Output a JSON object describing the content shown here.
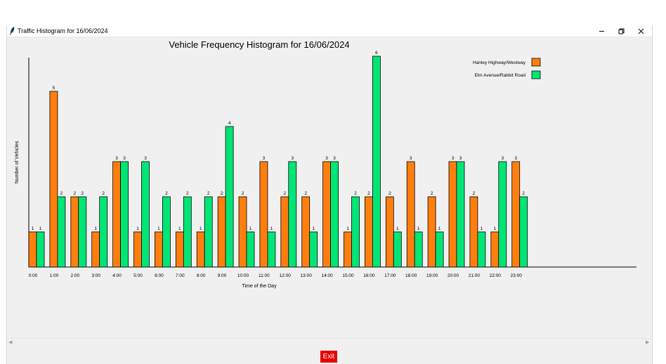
{
  "window": {
    "title": "Traffic Histogram for 16/06/2024",
    "controls": [
      "minimize-icon",
      "restore-icon",
      "close-icon"
    ]
  },
  "exit_button": {
    "label": "Exit",
    "color": "#e60000"
  },
  "chart_data": {
    "type": "bar",
    "title": "Vehicle Frequency Histogram for 16/06/2024",
    "xlabel": "Time of the Day",
    "ylabel": "Number of Vehicles",
    "ylim": [
      0,
      6
    ],
    "grid": false,
    "legend_position": "top-right",
    "categories": [
      "0:00",
      "1:00",
      "2:00",
      "3:00",
      "4:00",
      "5:00",
      "6:00",
      "7:00",
      "8:00",
      "9:00",
      "10:00",
      "11:00",
      "12:00",
      "13:00",
      "14:00",
      "15:00",
      "16:00",
      "17:00",
      "18:00",
      "19:00",
      "20:00",
      "21:00",
      "22:00",
      "23:00"
    ],
    "series": [
      {
        "name": "Hanley Highway/Westway",
        "color": "#ff7f0e",
        "values": [
          1,
          5,
          2,
          1,
          3,
          1,
          1,
          1,
          1,
          2,
          2,
          3,
          2,
          2,
          3,
          1,
          2,
          2,
          3,
          2,
          3,
          2,
          1,
          3
        ]
      },
      {
        "name": "Elm Avenue/Rabbit Road",
        "color": "#00e676",
        "values": [
          1,
          2,
          2,
          2,
          3,
          3,
          2,
          2,
          2,
          4,
          1,
          1,
          3,
          1,
          3,
          2,
          6,
          1,
          1,
          1,
          3,
          1,
          3,
          2
        ]
      }
    ]
  }
}
